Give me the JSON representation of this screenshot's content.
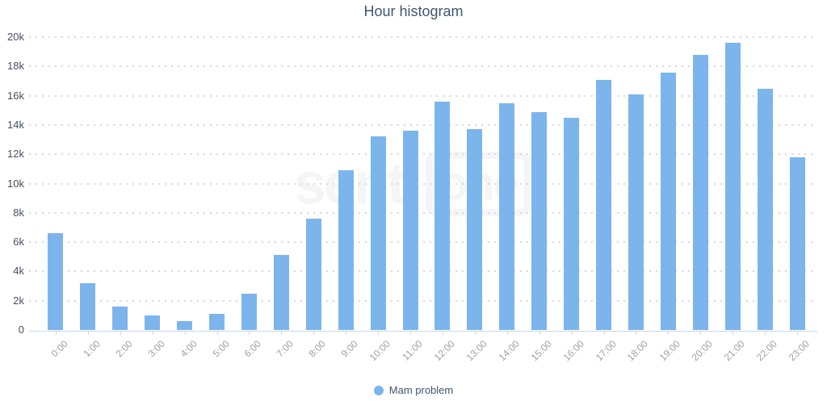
{
  "title": "Hour histogram",
  "chart_data": {
    "type": "bar",
    "title": "Hour histogram",
    "xlabel": "",
    "ylabel": "",
    "categories": [
      "0:00",
      "1:00",
      "2:00",
      "3:00",
      "4:00",
      "5:00",
      "6:00",
      "7:00",
      "8:00",
      "9:00",
      "10:00",
      "11:00",
      "12:00",
      "13:00",
      "14:00",
      "15:00",
      "16:00",
      "17:00",
      "18:00",
      "19:00",
      "20:00",
      "21:00",
      "22:00",
      "23:00"
    ],
    "series": [
      {
        "name": "Mam problem",
        "values": [
          6600,
          3200,
          1600,
          1000,
          600,
          1100,
          2500,
          5100,
          7600,
          10900,
          13200,
          13600,
          15600,
          13700,
          15500,
          14900,
          14500,
          17100,
          16100,
          17600,
          18800,
          19600,
          16450,
          11800
        ]
      }
    ],
    "ylim": [
      0,
      20000
    ],
    "ytick_values": [
      0,
      2000,
      4000,
      6000,
      8000,
      10000,
      12000,
      14000,
      16000,
      18000,
      20000
    ],
    "ytick_labels": [
      "0",
      "2k",
      "4k",
      "6k",
      "8k",
      "10k",
      "12k",
      "14k",
      "16k",
      "18k",
      "20k"
    ],
    "grid": "dotted-horizontal",
    "legend_position": "bottom-center"
  },
  "legend": {
    "label": "Mam problem"
  },
  "watermark": {
    "part1": "senti",
    "part2": "one"
  },
  "colors": {
    "bar": "#7cb5ec",
    "title_text": "#3e576f",
    "y_label_text": "#444f63",
    "x_label_text": "#9aa0a7",
    "axis_line": "#ccd6eb",
    "grid_dot": "#d8d8d8",
    "legend_text": "#3e576f",
    "watermark": "#f5f5f5"
  }
}
